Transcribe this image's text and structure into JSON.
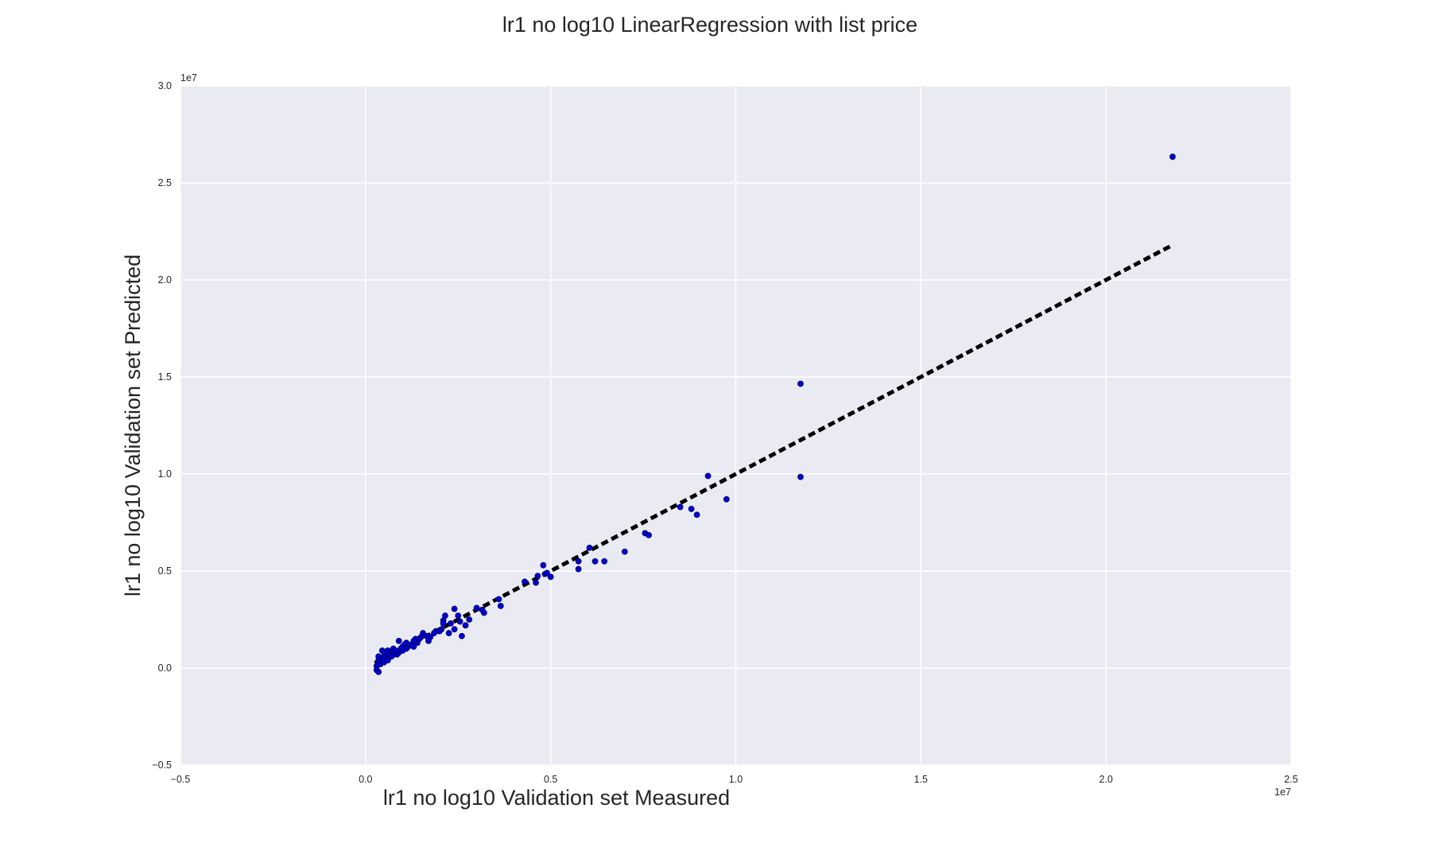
{
  "chart_data": {
    "type": "scatter",
    "title": "lr1 no log10 LinearRegression with list price",
    "xlabel": "lr1 no log10 Validation set Measured",
    "ylabel": "lr1 no log10 Validation set Predicted",
    "x_offset_label": "1e7",
    "y_offset_label": "1e7",
    "xlim": [
      -0.5,
      2.5
    ],
    "ylim": [
      -0.5,
      3.0
    ],
    "x_ticks": [
      "−0.5",
      "0.0",
      "0.5",
      "1.0",
      "1.5",
      "2.0",
      "2.5"
    ],
    "y_ticks": [
      "−0.5",
      "0.0",
      "0.5",
      "1.0",
      "1.5",
      "2.0",
      "2.5",
      "3.0"
    ],
    "grid": true,
    "background_color": "#eaeaf2",
    "point_color": "#0000cc",
    "line_color": "#000000",
    "series": [
      {
        "kind": "scatter",
        "x": [
          2.18,
          1.175,
          1.175,
          0.925,
          0.975,
          0.88,
          0.895,
          0.85,
          0.755,
          0.765,
          0.7,
          0.645,
          0.62,
          0.605,
          0.575,
          0.575,
          0.5,
          0.485,
          0.48,
          0.49,
          0.46,
          0.465,
          0.43,
          0.36,
          0.365,
          0.32,
          0.315,
          0.3,
          0.28,
          0.27,
          0.24,
          0.25,
          0.24,
          0.26,
          0.23,
          0.215,
          0.21,
          0.205,
          0.2,
          0.19,
          0.185,
          0.175,
          0.17,
          0.165,
          0.155,
          0.15,
          0.145,
          0.14,
          0.14,
          0.135,
          0.13,
          0.125,
          0.12,
          0.115,
          0.11,
          0.105,
          0.1,
          0.1,
          0.095,
          0.09,
          0.09,
          0.085,
          0.08,
          0.075,
          0.075,
          0.07,
          0.065,
          0.065,
          0.06,
          0.06,
          0.055,
          0.05,
          0.05,
          0.045,
          0.045,
          0.04,
          0.035,
          0.035,
          0.03,
          0.03,
          0.035,
          0.04,
          0.05,
          0.06,
          0.07,
          0.08,
          0.11,
          0.13,
          0.21,
          0.255,
          0.225
        ],
        "y": [
          2.635,
          1.465,
          0.985,
          0.99,
          0.87,
          0.82,
          0.79,
          0.83,
          0.695,
          0.685,
          0.6,
          0.55,
          0.55,
          0.62,
          0.55,
          0.51,
          0.47,
          0.485,
          0.53,
          0.49,
          0.44,
          0.475,
          0.445,
          0.355,
          0.32,
          0.285,
          0.3,
          0.31,
          0.25,
          0.22,
          0.305,
          0.27,
          0.2,
          0.165,
          0.23,
          0.27,
          0.245,
          0.2,
          0.19,
          0.19,
          0.18,
          0.16,
          0.14,
          0.165,
          0.18,
          0.16,
          0.15,
          0.14,
          0.13,
          0.15,
          0.14,
          0.12,
          0.12,
          0.11,
          0.1,
          0.12,
          0.09,
          0.11,
          0.1,
          0.14,
          0.08,
          0.07,
          0.09,
          0.07,
          0.1,
          0.06,
          0.08,
          0.07,
          0.07,
          0.09,
          0.05,
          0.06,
          0.08,
          0.05,
          0.09,
          0.04,
          0.04,
          0.06,
          0.01,
          -0.01,
          -0.02,
          0.02,
          0.03,
          0.04,
          0.06,
          0.09,
          0.13,
          0.11,
          0.23,
          0.24,
          0.18
        ]
      },
      {
        "kind": "dashed-line",
        "x": [
          0.025,
          2.18
        ],
        "y": [
          0.025,
          2.18
        ]
      }
    ]
  }
}
